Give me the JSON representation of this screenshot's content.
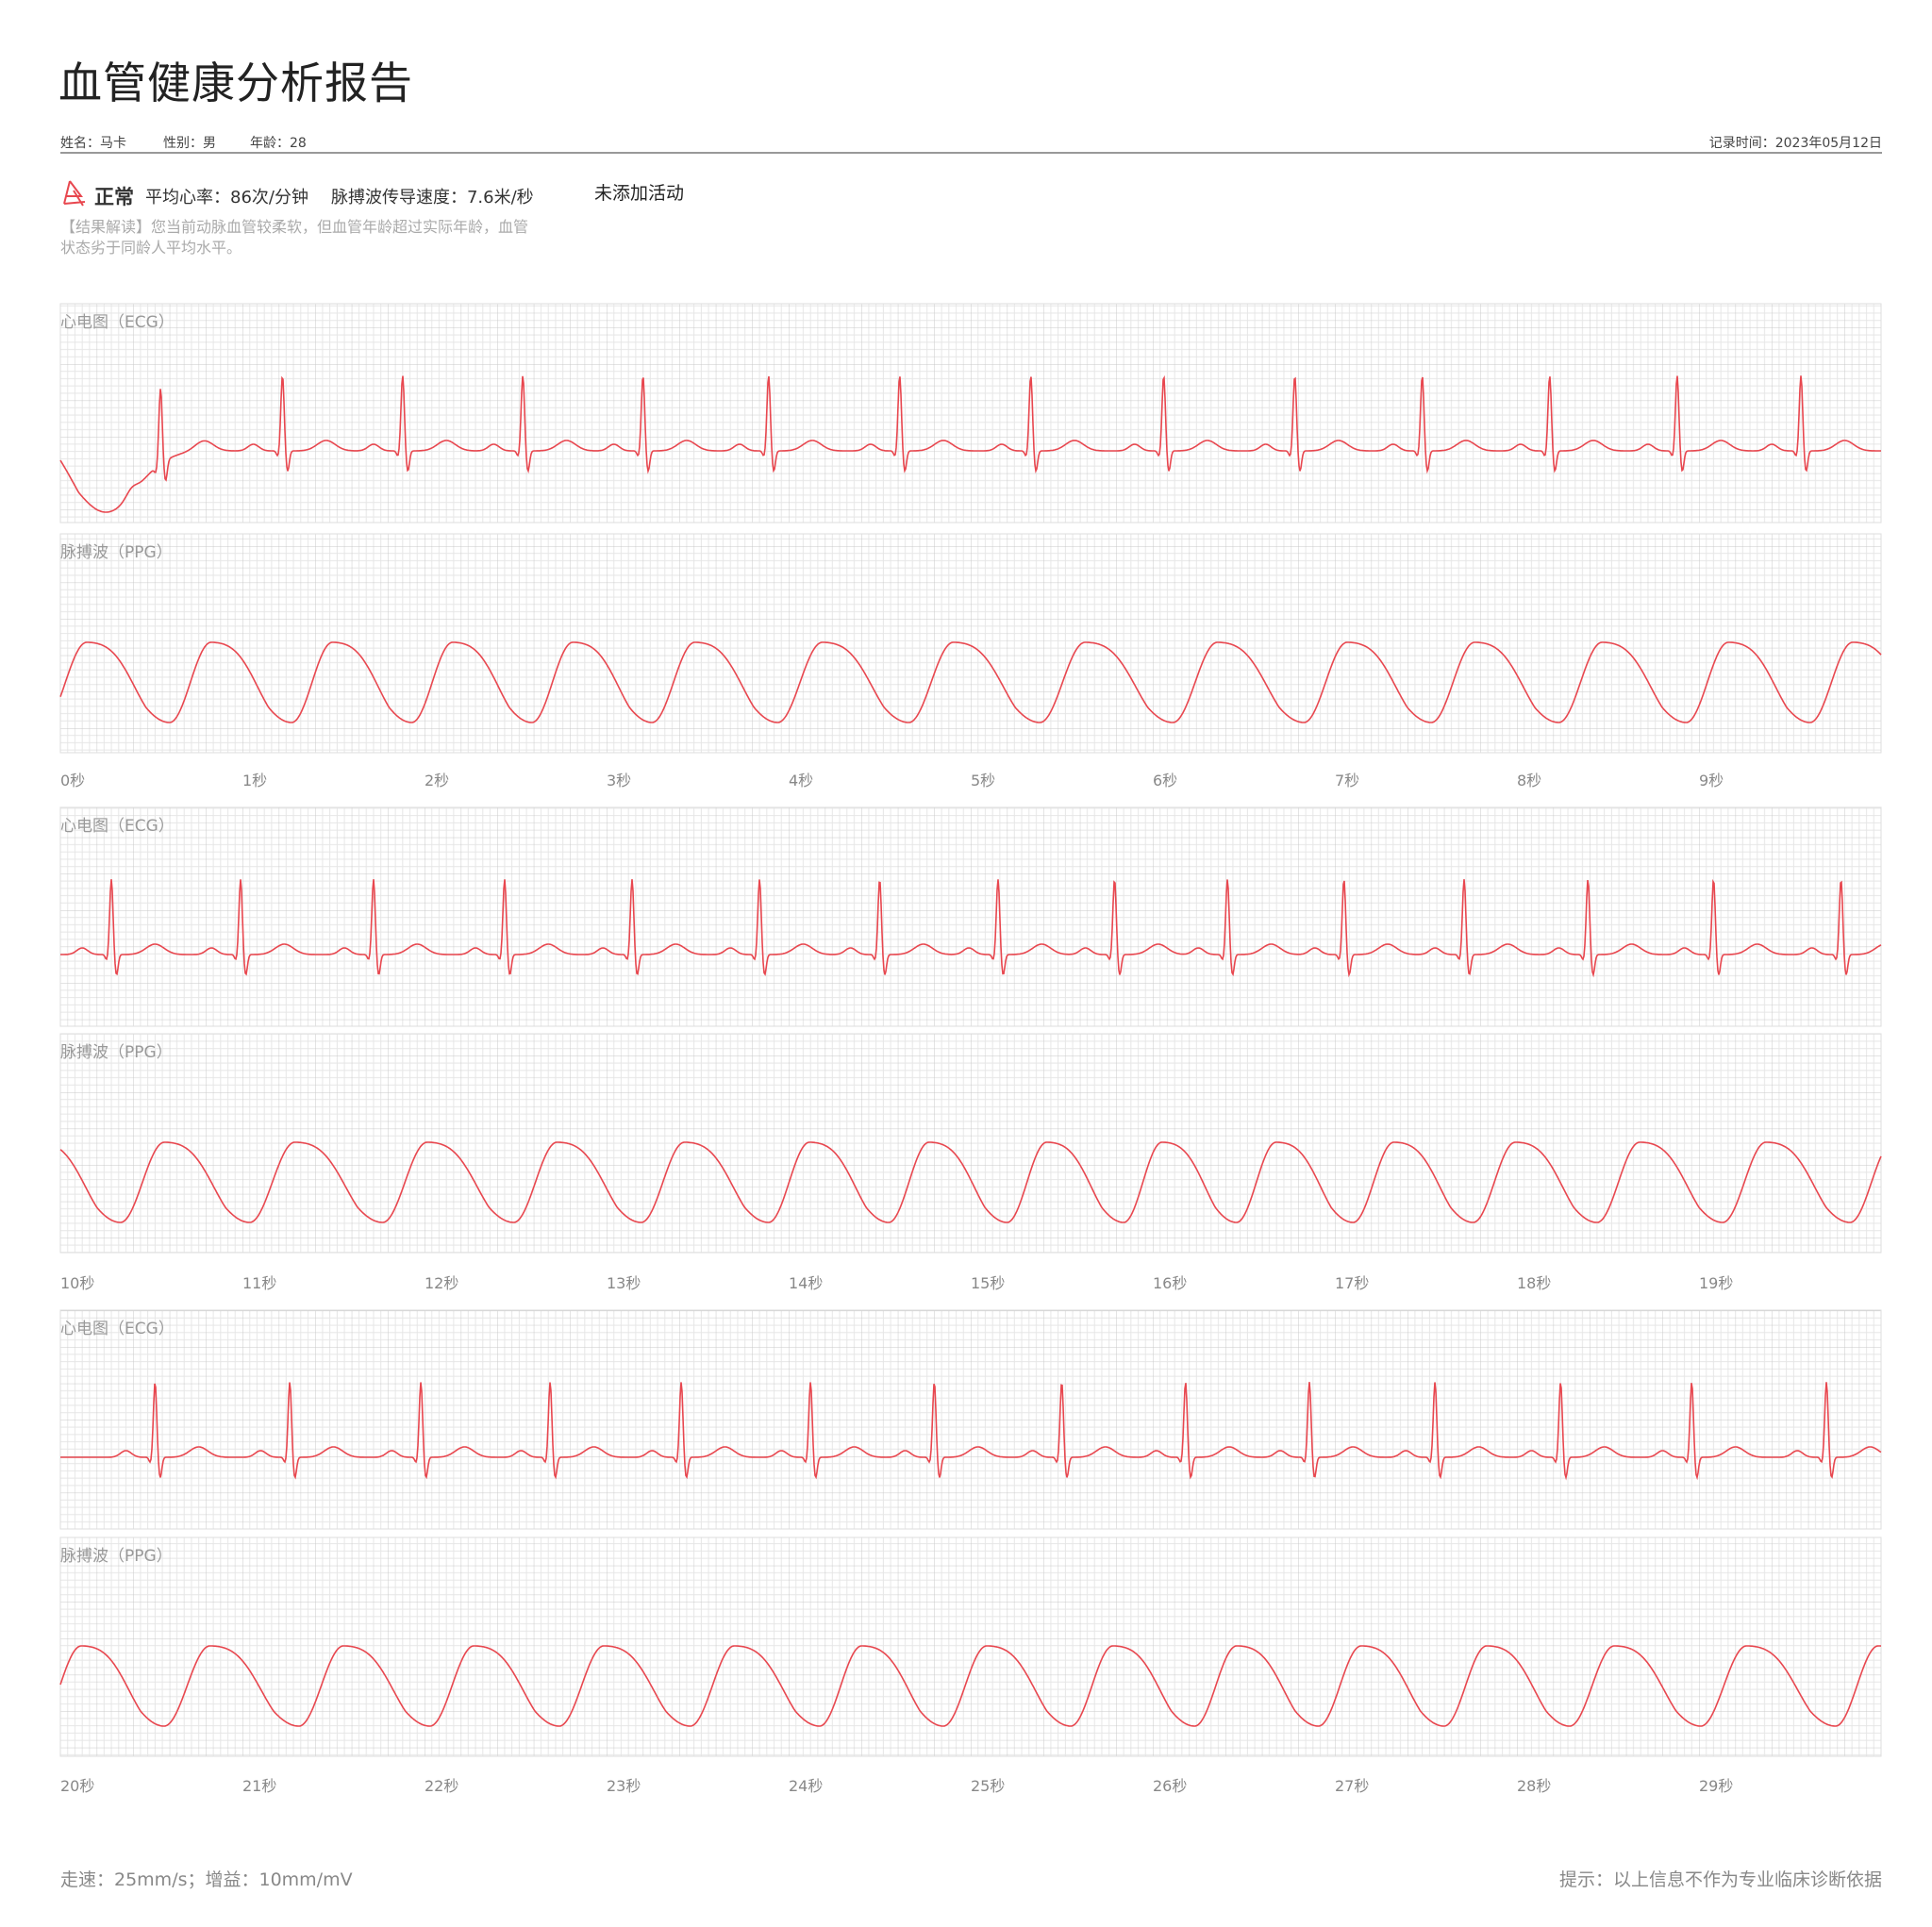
{
  "header": {
    "title": "血管健康分析报告",
    "name": "姓名：马卡",
    "gender": "性别：男",
    "age": "年龄：28",
    "record_time": "记录时间：2023年05月12日"
  },
  "summary": {
    "status_icon": "vessel-stamp-icon",
    "status": "正常",
    "avg_heart_rate": "平均心率：86次/分钟",
    "pwv": "脉搏波传导速度：7.6米/秒",
    "activity": "未添加活动",
    "interpretation": "【结果解读】您当前动脉血管较柔软，但血管年龄超过实际年龄，血管状态劣于同龄人平均水平。"
  },
  "footer": {
    "speed_gain": "走速：25mm/s；增益：10mm/mV",
    "disclaimer": "提示：以上信息不作为专业临床诊断依据"
  },
  "colors": {
    "trace": "#e8474f",
    "grid_minor": "#e4e4e4",
    "grid_major": "#c8c8c8"
  },
  "chart_data": {
    "type": "line",
    "ecg_label": "心电图（ECG）",
    "ppg_label": "脉搏波（PPG）",
    "x_unit": "秒",
    "grid": true,
    "paper_speed_mm_per_s": 25,
    "gain_mm_per_mv": 10,
    "strips": [
      {
        "range": [
          0,
          10
        ],
        "ticks": [
          "0秒",
          "1秒",
          "2秒",
          "3秒",
          "4秒",
          "5秒",
          "6秒",
          "7秒",
          "8秒",
          "9秒"
        ],
        "r_peaks": [
          0.55,
          1.22,
          1.88,
          2.54,
          3.2,
          3.89,
          4.61,
          5.33,
          6.06,
          6.78,
          7.48,
          8.18,
          8.88,
          9.56
        ],
        "baseline_wander_start": true
      },
      {
        "range": [
          10,
          20
        ],
        "ticks": [
          "10秒",
          "11秒",
          "12秒",
          "13秒",
          "14秒",
          "15秒",
          "16秒",
          "17秒",
          "18秒",
          "19秒"
        ],
        "r_peaks": [
          10.28,
          10.99,
          11.72,
          12.44,
          13.14,
          13.84,
          14.5,
          15.15,
          15.79,
          16.41,
          17.05,
          17.71,
          18.39,
          19.08,
          19.78
        ]
      },
      {
        "range": [
          20,
          30
        ],
        "ticks": [
          "20秒",
          "21秒",
          "22秒",
          "23秒",
          "24秒",
          "25秒",
          "26秒",
          "27秒",
          "28秒",
          "29秒"
        ],
        "r_peaks": [
          20.52,
          21.26,
          21.98,
          22.69,
          23.41,
          24.12,
          24.8,
          25.5,
          26.18,
          26.86,
          27.55,
          28.24,
          28.96,
          29.7
        ]
      }
    ]
  }
}
